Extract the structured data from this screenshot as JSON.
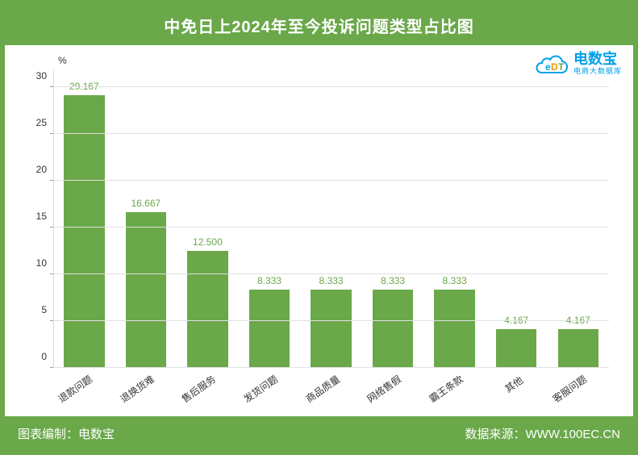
{
  "header": {
    "title": "中免日上2024年至今投诉问题类型占比图"
  },
  "footer": {
    "left": "图表编制：电数宝",
    "right": "数据来源：WWW.100EC.CN"
  },
  "logo": {
    "main": "电数宝",
    "sub": "电商大数据库",
    "edt": "eDT"
  },
  "chart": {
    "type": "bar",
    "y_unit": "%",
    "ylim": [
      0,
      30
    ],
    "ytick_step": 5,
    "yticks": [
      0,
      5,
      10,
      15,
      20,
      25,
      30
    ],
    "y_padding_top_ratio": 0.06,
    "categories": [
      "退款问题",
      "退换货难",
      "售后服务",
      "发货问题",
      "商品质量",
      "网络售假",
      "霸王条款",
      "其他",
      "客服问题"
    ],
    "values": [
      29.167,
      16.667,
      12.5,
      8.333,
      8.333,
      8.333,
      8.333,
      4.167,
      4.167
    ],
    "value_labels": [
      "29.167",
      "16.667",
      "12.500",
      "8.333",
      "8.333",
      "8.333",
      "8.333",
      "4.167",
      "4.167"
    ],
    "bar_color": "#6aa84a",
    "value_label_color": "#6aa84a",
    "grid_color": "#e0e0e0",
    "axis_color": "#dcdcdc",
    "tick_label_color": "#333333",
    "background_color": "#ffffff",
    "frame_color": "#6aa84a",
    "header_text_color": "#ffffff",
    "bar_width_ratio": 0.66,
    "x_label_rotate_deg": -35,
    "label_fontsize": 12,
    "title_fontsize": 20
  }
}
